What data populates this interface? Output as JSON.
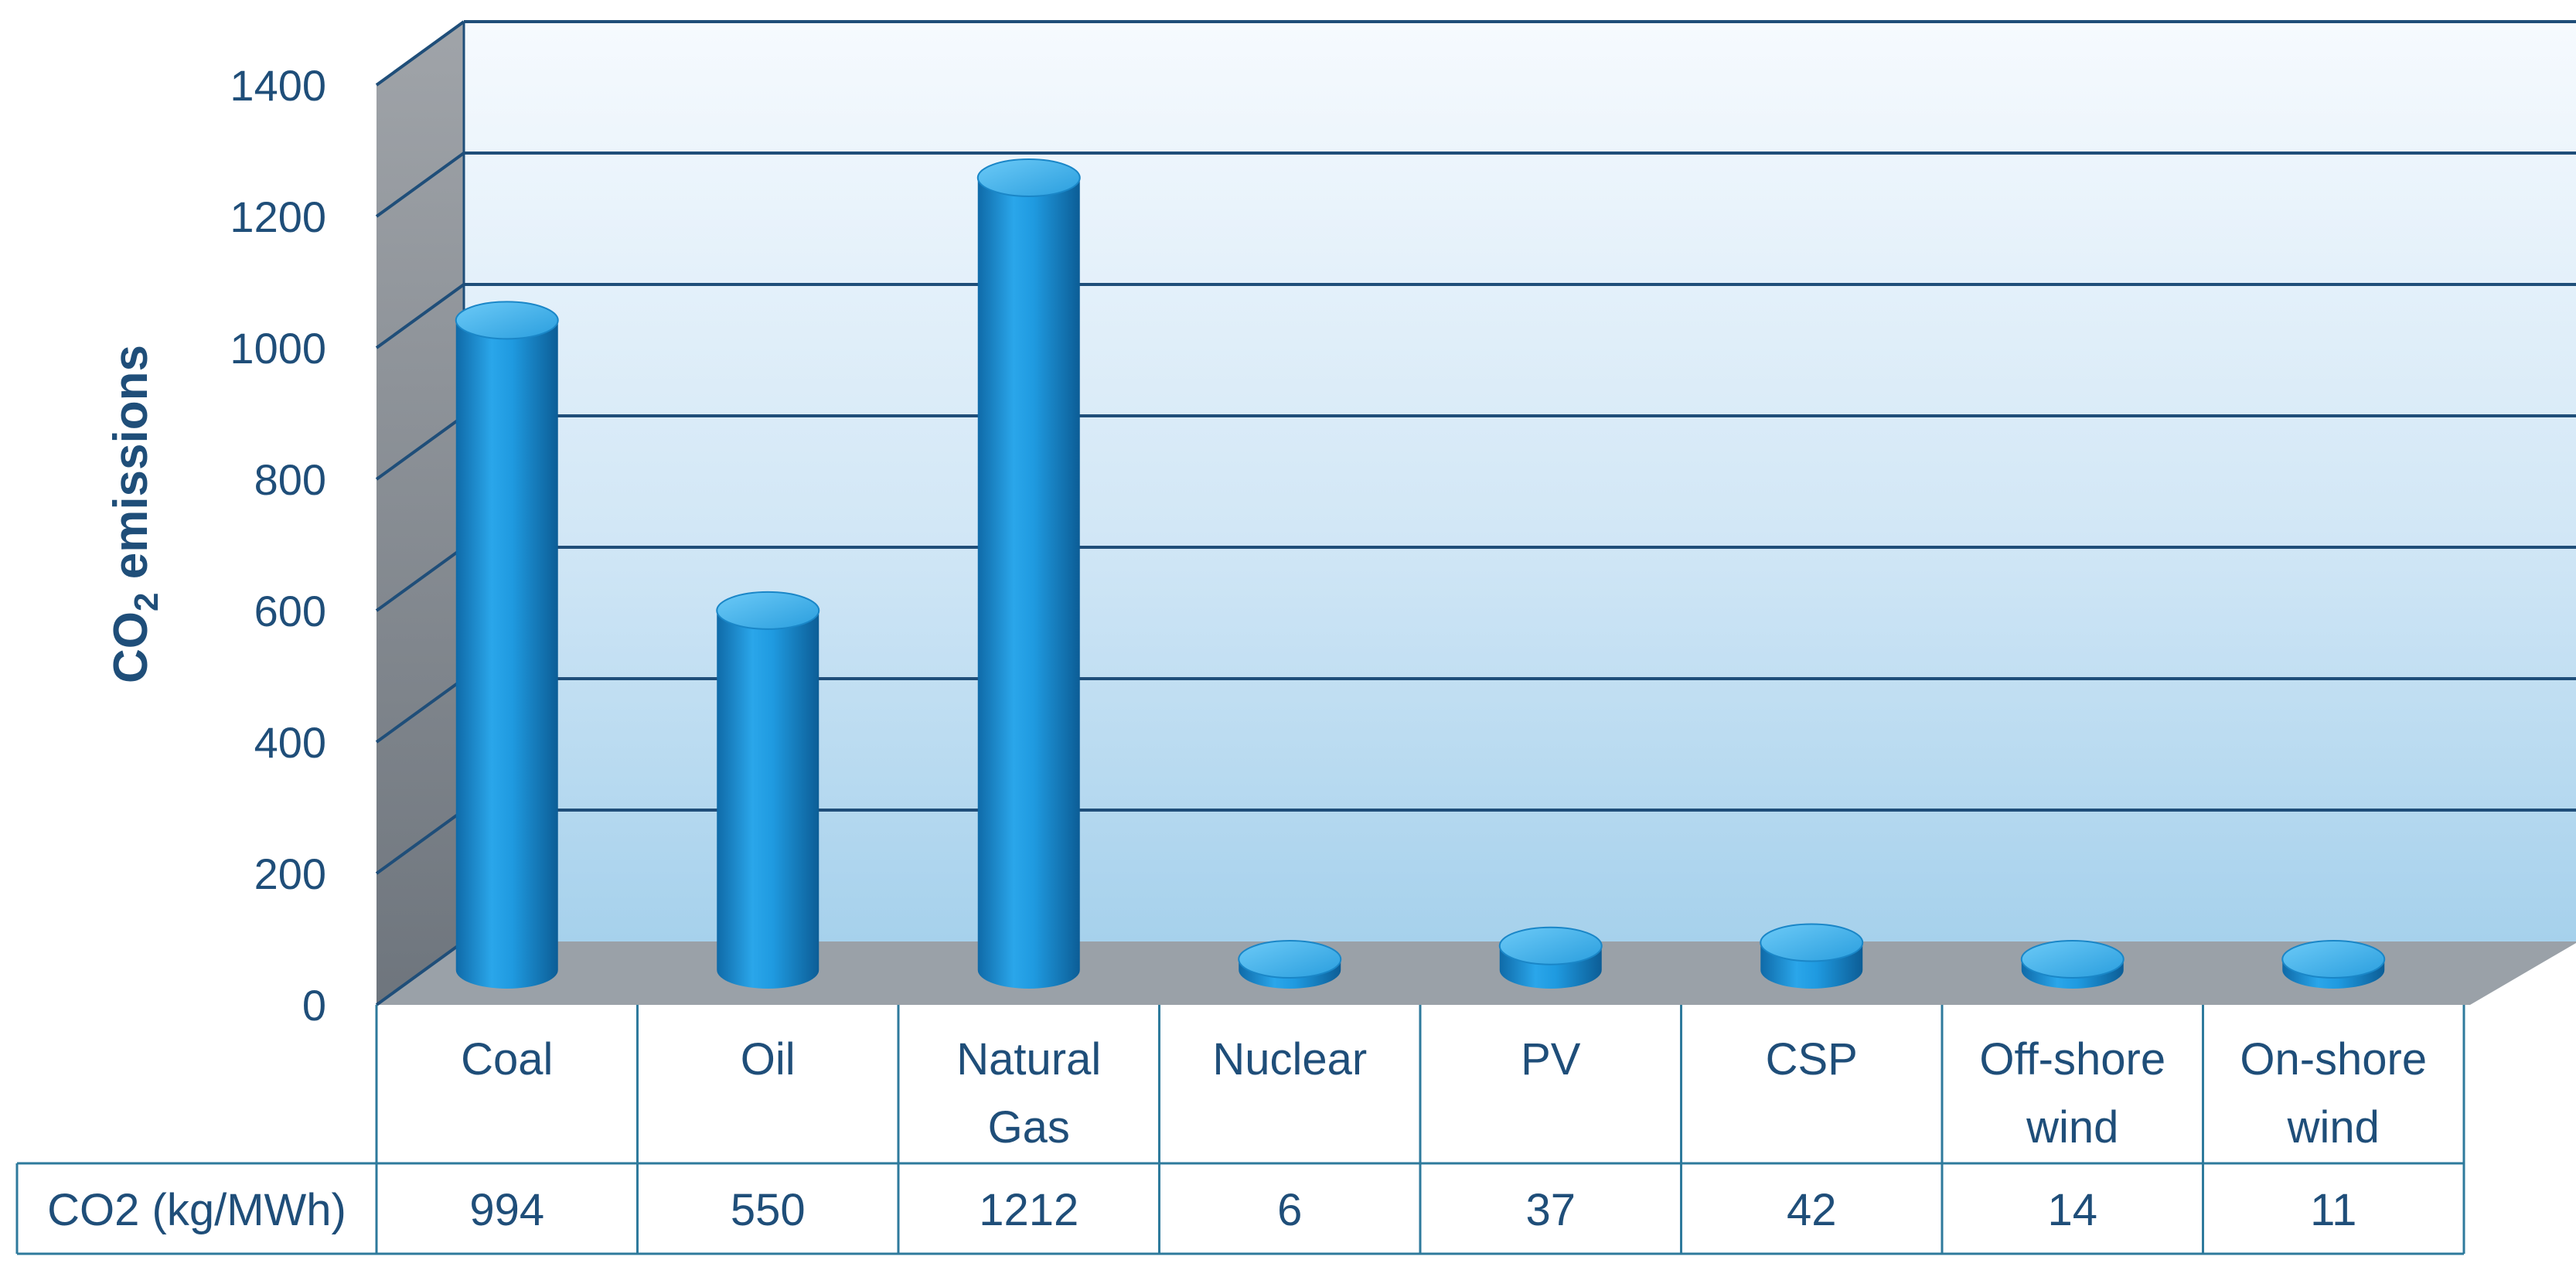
{
  "chart_data": {
    "type": "bar",
    "ylabel_main": "CO",
    "ylabel_sub": "2",
    "ylabel_rest": " emissions",
    "ylim": [
      0,
      1400
    ],
    "yticks": [
      0,
      200,
      400,
      600,
      800,
      1000,
      1200,
      1400
    ],
    "categories": [
      [
        "Coal"
      ],
      [
        "Oil"
      ],
      [
        "Natural",
        "Gas"
      ],
      [
        "Nuclear"
      ],
      [
        "PV"
      ],
      [
        "CSP"
      ],
      [
        "Off-shore",
        "wind"
      ],
      [
        "On-shore",
        "wind"
      ]
    ],
    "values": [
      994,
      550,
      1212,
      6,
      37,
      42,
      14,
      11
    ],
    "table_row_label": "CO2 (kg/MWh)",
    "grid": true,
    "colors": {
      "bar": "#1f9ae0",
      "bar_dark": "#0f6aa8",
      "bar_light": "#5cc0f5",
      "grid": "#1f4e79",
      "text": "#1f4e79",
      "wall_top": "#f4f9fd",
      "wall_bottom": "#a9d4ee",
      "side_wall": "#8a8f96",
      "floor": "#9aa1a8"
    }
  }
}
